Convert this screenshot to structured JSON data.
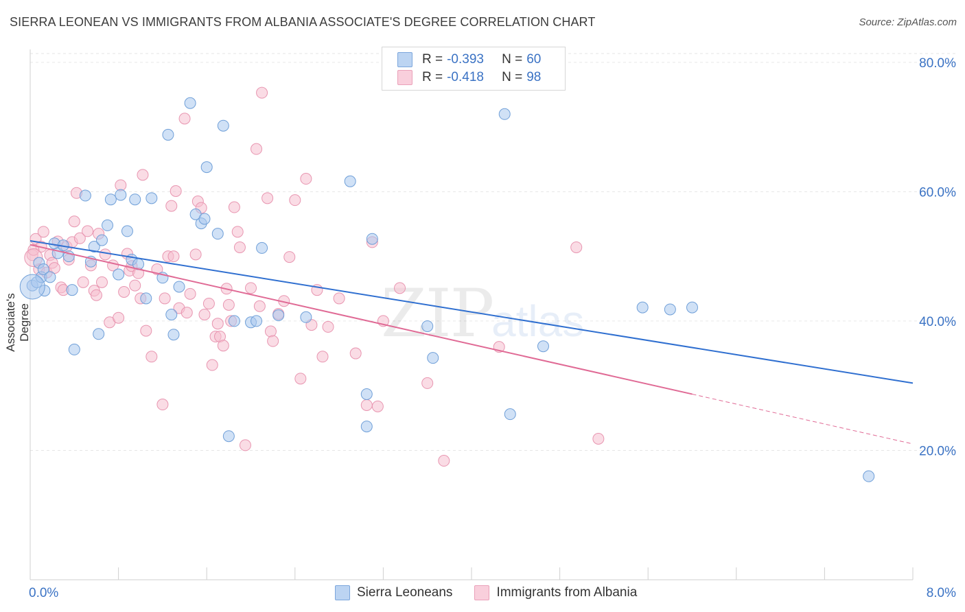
{
  "title": "SIERRA LEONEAN VS IMMIGRANTS FROM ALBANIA ASSOCIATE'S DEGREE CORRELATION CHART",
  "source": "Source: ZipAtlas.com",
  "watermark": {
    "zip": "ZIP",
    "atlas": "atlas"
  },
  "legend_box": {
    "rows": [
      {
        "r_label": "R =",
        "r_value": "-0.393",
        "n_label": "N =",
        "n_value": "60"
      },
      {
        "r_label": "R =",
        "r_value": "-0.418",
        "n_label": "N =",
        "n_value": "98"
      }
    ]
  },
  "colors": {
    "blue_fill": "#aac8ee",
    "blue_stroke": "#6f9fd8",
    "blue_line": "#2f6fd0",
    "pink_fill": "#f6bfd0",
    "pink_stroke": "#e895b0",
    "pink_line": "#e06a95",
    "tick_label": "#3a72c4",
    "grid": "#e6e6e6"
  },
  "chart_data": {
    "type": "scatter",
    "title": "SIERRA LEONEAN VS IMMIGRANTS FROM ALBANIA ASSOCIATE'S DEGREE CORRELATION CHART",
    "xlabel": "",
    "ylabel": "Associate's Degree",
    "xlim": [
      0,
      8
    ],
    "ylim": [
      0,
      82
    ],
    "x_tick_labels": [
      "0.0%",
      "8.0%"
    ],
    "y_ticks": [
      20,
      40,
      60,
      80
    ],
    "y_tick_labels": [
      "20.0%",
      "40.0%",
      "60.0%",
      "80.0%"
    ],
    "legend_position": "bottom-center",
    "series": [
      {
        "name": "Sierra Leoneans",
        "R": -0.393,
        "N": 60,
        "trend": {
          "x0": 0.0,
          "y0": 52.4,
          "x1": 8.0,
          "y1": 30.4
        },
        "points": [
          [
            0.02,
            45.5
          ],
          [
            0.06,
            46.0
          ],
          [
            0.08,
            49.0
          ],
          [
            0.1,
            46.8
          ],
          [
            0.12,
            48.0
          ],
          [
            0.13,
            44.7
          ],
          [
            0.18,
            46.8
          ],
          [
            0.22,
            52.0
          ],
          [
            0.25,
            50.5
          ],
          [
            0.3,
            51.7
          ],
          [
            0.35,
            50.0
          ],
          [
            0.38,
            44.8
          ],
          [
            0.4,
            35.6
          ],
          [
            0.5,
            59.4
          ],
          [
            0.55,
            49.2
          ],
          [
            0.58,
            51.5
          ],
          [
            0.62,
            38.0
          ],
          [
            0.65,
            52.5
          ],
          [
            0.7,
            54.8
          ],
          [
            0.73,
            58.8
          ],
          [
            0.8,
            47.2
          ],
          [
            0.82,
            59.5
          ],
          [
            0.88,
            53.9
          ],
          [
            0.92,
            49.5
          ],
          [
            0.95,
            58.8
          ],
          [
            0.98,
            48.8
          ],
          [
            1.05,
            43.5
          ],
          [
            1.1,
            59.0
          ],
          [
            1.2,
            46.7
          ],
          [
            1.25,
            68.8
          ],
          [
            1.28,
            41.0
          ],
          [
            1.3,
            37.9
          ],
          [
            1.35,
            45.3
          ],
          [
            1.45,
            73.7
          ],
          [
            1.5,
            56.5
          ],
          [
            1.55,
            55.1
          ],
          [
            1.58,
            55.8
          ],
          [
            1.6,
            63.8
          ],
          [
            1.7,
            53.5
          ],
          [
            1.75,
            70.2
          ],
          [
            1.8,
            22.2
          ],
          [
            1.85,
            40.0
          ],
          [
            2.0,
            39.8
          ],
          [
            2.05,
            40.0
          ],
          [
            2.1,
            51.3
          ],
          [
            2.25,
            40.9
          ],
          [
            2.5,
            40.6
          ],
          [
            2.9,
            61.6
          ],
          [
            3.05,
            23.7
          ],
          [
            3.05,
            28.7
          ],
          [
            3.1,
            52.7
          ],
          [
            3.6,
            39.2
          ],
          [
            3.65,
            34.3
          ],
          [
            4.3,
            72.0
          ],
          [
            4.35,
            25.6
          ],
          [
            4.65,
            36.1
          ],
          [
            5.55,
            42.1
          ],
          [
            5.8,
            41.8
          ],
          [
            6.0,
            42.1
          ],
          [
            7.6,
            16.0
          ]
        ]
      },
      {
        "name": "Immigrants from Albania",
        "R": -0.418,
        "N": 98,
        "trend": {
          "x0": 0.0,
          "y0": 51.8,
          "x1": 6.0,
          "y1": 28.7,
          "dash_x1": 8.0,
          "dash_y1": 21.0
        },
        "points": [
          [
            0.02,
            50.2
          ],
          [
            0.05,
            52.7
          ],
          [
            0.08,
            48.0
          ],
          [
            0.1,
            51.5
          ],
          [
            0.12,
            53.8
          ],
          [
            0.15,
            47.5
          ],
          [
            0.18,
            50.2
          ],
          [
            0.2,
            49.0
          ],
          [
            0.22,
            48.2
          ],
          [
            0.25,
            52.3
          ],
          [
            0.28,
            45.2
          ],
          [
            0.3,
            44.8
          ],
          [
            0.33,
            51.5
          ],
          [
            0.35,
            49.5
          ],
          [
            0.38,
            52.2
          ],
          [
            0.4,
            55.4
          ],
          [
            0.42,
            59.8
          ],
          [
            0.45,
            52.8
          ],
          [
            0.48,
            46.0
          ],
          [
            0.52,
            53.9
          ],
          [
            0.55,
            48.6
          ],
          [
            0.58,
            44.7
          ],
          [
            0.6,
            44.0
          ],
          [
            0.62,
            53.5
          ],
          [
            0.65,
            46.0
          ],
          [
            0.68,
            50.3
          ],
          [
            0.72,
            39.8
          ],
          [
            0.75,
            48.6
          ],
          [
            0.8,
            40.5
          ],
          [
            0.82,
            61.0
          ],
          [
            0.85,
            44.5
          ],
          [
            0.88,
            50.4
          ],
          [
            0.9,
            47.8
          ],
          [
            0.92,
            48.5
          ],
          [
            0.95,
            45.5
          ],
          [
            0.98,
            47.4
          ],
          [
            1.0,
            43.5
          ],
          [
            1.02,
            62.6
          ],
          [
            1.05,
            38.5
          ],
          [
            1.1,
            34.5
          ],
          [
            1.15,
            48.0
          ],
          [
            1.2,
            27.1
          ],
          [
            1.22,
            43.5
          ],
          [
            1.25,
            50.0
          ],
          [
            1.28,
            57.8
          ],
          [
            1.3,
            50.0
          ],
          [
            1.32,
            60.1
          ],
          [
            1.35,
            42.0
          ],
          [
            1.4,
            71.3
          ],
          [
            1.42,
            41.3
          ],
          [
            1.45,
            44.2
          ],
          [
            1.5,
            50.3
          ],
          [
            1.52,
            58.5
          ],
          [
            1.55,
            57.5
          ],
          [
            1.58,
            41.0
          ],
          [
            1.62,
            42.7
          ],
          [
            1.65,
            33.2
          ],
          [
            1.68,
            37.6
          ],
          [
            1.7,
            39.6
          ],
          [
            1.72,
            37.6
          ],
          [
            1.75,
            36.2
          ],
          [
            1.78,
            45.0
          ],
          [
            1.8,
            42.5
          ],
          [
            1.82,
            40.0
          ],
          [
            1.85,
            57.6
          ],
          [
            1.88,
            53.8
          ],
          [
            1.9,
            51.4
          ],
          [
            1.95,
            20.8
          ],
          [
            2.0,
            45.1
          ],
          [
            2.05,
            66.6
          ],
          [
            2.08,
            42.3
          ],
          [
            2.1,
            75.3
          ],
          [
            2.15,
            59.0
          ],
          [
            2.18,
            38.4
          ],
          [
            2.2,
            36.9
          ],
          [
            2.25,
            41.1
          ],
          [
            2.3,
            43.1
          ],
          [
            2.35,
            49.9
          ],
          [
            2.4,
            58.7
          ],
          [
            2.45,
            31.1
          ],
          [
            2.5,
            62.0
          ],
          [
            2.55,
            39.4
          ],
          [
            2.6,
            44.8
          ],
          [
            2.65,
            34.5
          ],
          [
            2.7,
            39.1
          ],
          [
            2.8,
            43.5
          ],
          [
            2.95,
            35.0
          ],
          [
            3.05,
            27.0
          ],
          [
            3.1,
            52.2
          ],
          [
            3.15,
            26.8
          ],
          [
            3.2,
            40.0
          ],
          [
            3.35,
            45.1
          ],
          [
            3.6,
            30.4
          ],
          [
            3.75,
            18.4
          ],
          [
            4.25,
            36.0
          ],
          [
            4.95,
            51.4
          ],
          [
            5.15,
            21.8
          ],
          [
            0.03,
            51.0
          ]
        ]
      }
    ]
  },
  "bottom_legend": {
    "items": [
      {
        "label": "Sierra Leoneans"
      },
      {
        "label": "Immigrants from Albania"
      }
    ]
  }
}
